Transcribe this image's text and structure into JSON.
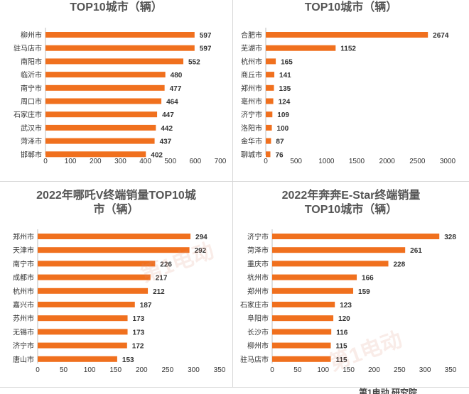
{
  "charts": [
    {
      "title_line2": "TOP10城市（辆）",
      "chart_data": {
        "type": "bar",
        "orientation": "horizontal",
        "title": "TOP10城市（辆）",
        "categories": [
          "柳州市",
          "驻马店市",
          "南阳市",
          "临沂市",
          "南宁市",
          "周口市",
          "石家庄市",
          "武汉市",
          "菏泽市",
          "邯郸市"
        ],
        "values": [
          597,
          597,
          552,
          480,
          477,
          464,
          447,
          442,
          437,
          402
        ],
        "ticks": [
          0,
          100,
          200,
          300,
          400,
          500,
          600,
          700
        ],
        "xlim": [
          0,
          700
        ]
      }
    },
    {
      "title_line2": "TOP10城市（辆）",
      "chart_data": {
        "type": "bar",
        "orientation": "horizontal",
        "title": "TOP10城市（辆）",
        "categories": [
          "合肥市",
          "芜湖市",
          "杭州市",
          "商丘市",
          "郑州市",
          "亳州市",
          "济宁市",
          "洛阳市",
          "金华市",
          "聊城市"
        ],
        "values": [
          2674,
          1152,
          165,
          141,
          135,
          124,
          109,
          100,
          87,
          76
        ],
        "ticks": [
          0,
          500,
          1000,
          1500,
          2000,
          2500,
          3000
        ],
        "xlim": [
          0,
          3000
        ]
      }
    },
    {
      "title_line1": "2022年哪吒V终端销量TOP10城",
      "title_line2": "市（辆）",
      "chart_data": {
        "type": "bar",
        "orientation": "horizontal",
        "title": "2022年哪吒V终端销量TOP10城市（辆）",
        "categories": [
          "郑州市",
          "天津市",
          "南宁市",
          "成都市",
          "杭州市",
          "嘉兴市",
          "苏州市",
          "无锡市",
          "济宁市",
          "唐山市"
        ],
        "values": [
          294,
          292,
          226,
          217,
          212,
          187,
          173,
          173,
          172,
          153
        ],
        "ticks": [
          0,
          50,
          100,
          150,
          200,
          250,
          300,
          350
        ],
        "xlim": [
          0,
          350
        ]
      }
    },
    {
      "title_line1": "2022年奔奔E-Star终端销量",
      "title_line2": "TOP10城市（辆）",
      "chart_data": {
        "type": "bar",
        "orientation": "horizontal",
        "title": "2022年奔奔E-Star终端销量TOP10城市（辆）",
        "categories": [
          "济宁市",
          "菏泽市",
          "重庆市",
          "杭州市",
          "郑州市",
          "石家庄市",
          "阜阳市",
          "长沙市",
          "柳州市",
          "驻马店市"
        ],
        "values": [
          328,
          261,
          228,
          166,
          159,
          123,
          120,
          116,
          115,
          115
        ],
        "ticks": [
          0,
          50,
          100,
          150,
          200,
          250,
          300,
          350
        ],
        "xlim": [
          0,
          350
        ]
      }
    }
  ],
  "colors": {
    "bar": "#f0701e",
    "axis": "#bfbfbf",
    "title": "#555555"
  },
  "footer": {
    "text": "第1电动 研究院"
  },
  "watermark": {
    "text": "第1电动"
  }
}
